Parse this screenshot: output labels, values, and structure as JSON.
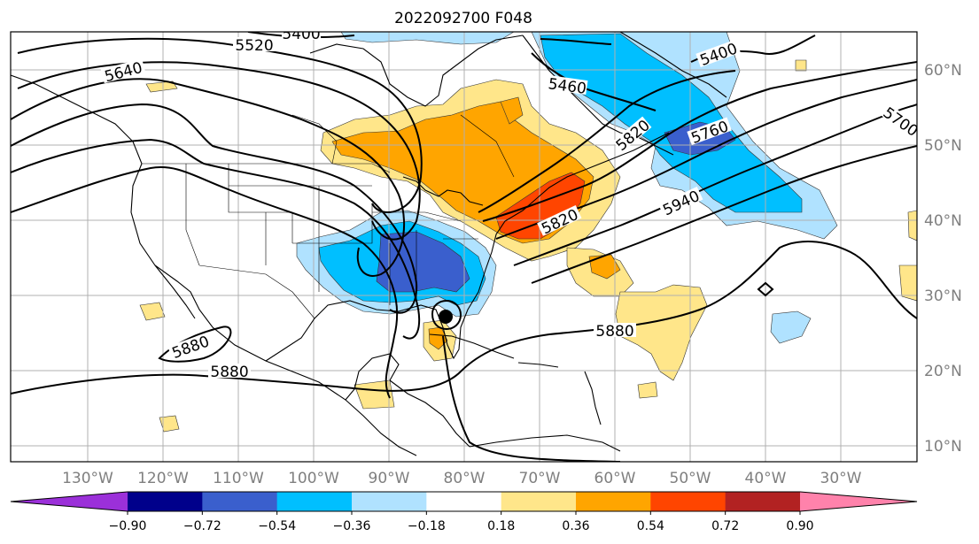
{
  "title": "2022092700 F048",
  "map": {
    "lon_range": [
      -140,
      -20
    ],
    "lat_range": [
      8,
      65
    ],
    "lon_ticks": [
      "130°W",
      "120°W",
      "110°W",
      "100°W",
      "90°W",
      "80°W",
      "70°W",
      "60°W",
      "50°W",
      "40°W",
      "30°W"
    ],
    "lat_ticks": [
      "10°N",
      "20°N",
      "30°N",
      "40°N",
      "50°N",
      "60°N"
    ],
    "gridlines": true,
    "storm_center": {
      "lon": -82.8,
      "lat": 27.1
    }
  },
  "contours": {
    "levels": [
      "5400",
      "5460",
      "5520",
      "5640",
      "5700",
      "5760",
      "5820",
      "5880",
      "5880",
      "5880",
      "5820",
      "5940",
      "5400"
    ]
  },
  "colorbar": {
    "ticks": [
      "−0.90",
      "−0.72",
      "−0.54",
      "−0.36",
      "−0.18",
      "0.18",
      "0.36",
      "0.54",
      "0.72",
      "0.90"
    ],
    "colors": [
      "#9b30d9",
      "#00008b",
      "#3a5fcd",
      "#00bfff",
      "#b0e2ff",
      "#ffffff",
      "#ffe68a",
      "#ffa500",
      "#ff4500",
      "#b22222",
      "#ff82ab"
    ]
  }
}
